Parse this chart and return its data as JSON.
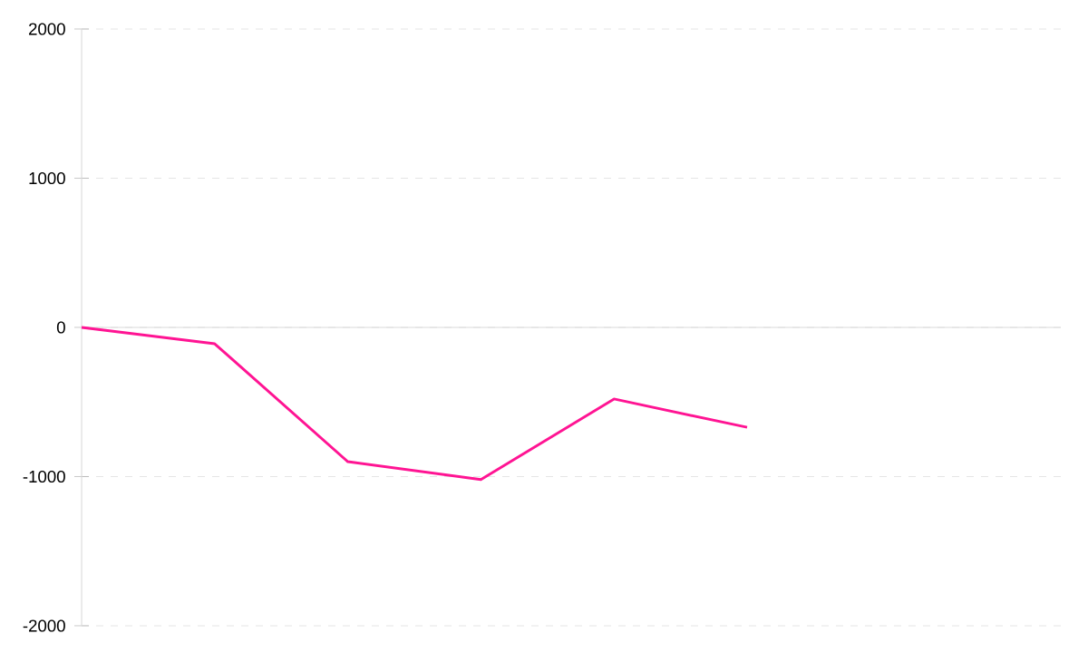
{
  "chart_data": {
    "type": "line",
    "categories": [
      null,
      null,
      null,
      null,
      null,
      null
    ],
    "series": [
      {
        "color": "#ff1493",
        "values": [
          0,
          -110,
          -900,
          -1020,
          -480,
          -670
        ]
      }
    ],
    "ylim": [
      -2000,
      2000
    ],
    "yticks": [
      -2000,
      -1000,
      0,
      1000,
      2000
    ],
    "tick_labels": "y",
    "grid": "y",
    "marker": "none",
    "line_style": "solid"
  }
}
